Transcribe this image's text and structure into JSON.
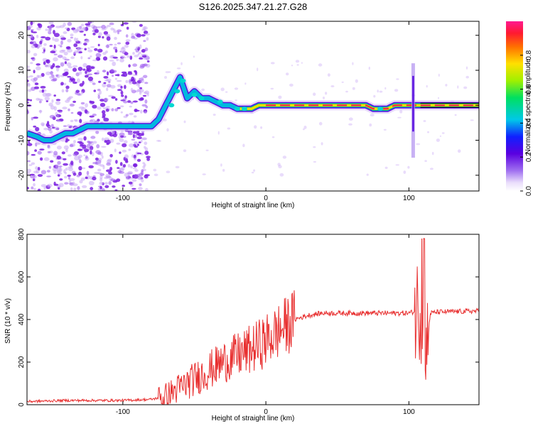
{
  "title": "S126.2025.347.21.27.G28",
  "colors": {
    "snr_line": "#e83030",
    "axis": "#000000",
    "ridge_core": "#ff2050",
    "ridge_mid": "#ffdd00",
    "ridge_outer": "#00c060",
    "scatter_purple": "#7a1ee0",
    "scatter_light": "#c9a8f5"
  },
  "chart_data": [
    {
      "id": "spectrogram",
      "type": "heatmap",
      "xlabel": "Height of straight line (km)",
      "ylabel": "Frequency (Hz)",
      "xlim": [
        -167,
        149
      ],
      "ylim": [
        -24.5,
        24
      ],
      "x_ticks": [
        -100,
        0,
        100
      ],
      "x_tick_labels": [
        "-100",
        "0",
        "100"
      ],
      "y_ticks": [
        -20,
        -10,
        0,
        10,
        20
      ],
      "y_tick_labels": [
        "-20",
        "-10",
        "0",
        "10",
        "20"
      ],
      "ridge": {
        "x": [
          -167,
          -160,
          -155,
          -150,
          -145,
          -140,
          -135,
          -130,
          -125,
          -120,
          -115,
          -110,
          -105,
          -100,
          -95,
          -90,
          -85,
          -80,
          -75,
          -70,
          -65,
          -60,
          -55,
          -50,
          -45,
          -40,
          -35,
          -30,
          -25,
          -20,
          -15,
          -10,
          -5,
          0,
          10,
          20,
          30,
          40,
          50,
          60,
          70,
          75,
          80,
          85,
          90,
          95,
          100,
          105,
          110,
          120,
          130,
          140,
          149
        ],
        "y": [
          -8,
          -9,
          -10,
          -10,
          -9,
          -8,
          -8,
          -7,
          -6,
          -6,
          -6,
          -6,
          -6,
          -6,
          -6,
          -6,
          -6,
          -6,
          -4,
          0,
          4,
          8,
          2,
          4,
          2,
          2,
          1,
          0,
          0,
          -1,
          -1,
          -1,
          0,
          0,
          0,
          0,
          0,
          0,
          0,
          0,
          0,
          -1,
          -1,
          -1,
          0,
          0,
          0,
          0,
          0,
          0,
          0,
          0,
          0
        ]
      },
      "noise_region_x": [
        -167,
        -82
      ],
      "spike": {
        "x": 103,
        "y_range": [
          -15,
          12
        ]
      }
    },
    {
      "id": "snr",
      "type": "line",
      "xlabel": "Height of straight line (km)",
      "ylabel": "SNR (10 * v/v)",
      "xlim": [
        -167,
        149
      ],
      "ylim": [
        0,
        800
      ],
      "x_ticks": [
        -100,
        0,
        100
      ],
      "x_tick_labels": [
        "-100",
        "0",
        "100"
      ],
      "y_ticks": [
        0,
        200,
        400,
        600,
        800
      ],
      "y_tick_labels": [
        "0",
        "200",
        "400",
        "600",
        "800"
      ],
      "envelope": {
        "x": [
          -167,
          -140,
          -100,
          -80,
          -70,
          -60,
          -50,
          -40,
          -30,
          -20,
          -10,
          0,
          10,
          20,
          30,
          40,
          60,
          80,
          100,
          105,
          108,
          110,
          112,
          115,
          120,
          149
        ],
        "y": [
          15,
          20,
          20,
          25,
          40,
          80,
          120,
          160,
          200,
          230,
          260,
          300,
          350,
          400,
          420,
          430,
          430,
          430,
          430,
          440,
          470,
          400,
          250,
          430,
          435,
          440
        ]
      }
    }
  ],
  "colorbar": {
    "label": "Normalized spectral amplitude",
    "ticks": [
      0.0,
      0.2,
      0.4,
      0.6,
      0.8
    ],
    "tick_labels": [
      "0.0",
      "0.2",
      "0.4",
      "0.6",
      "0.8"
    ]
  }
}
